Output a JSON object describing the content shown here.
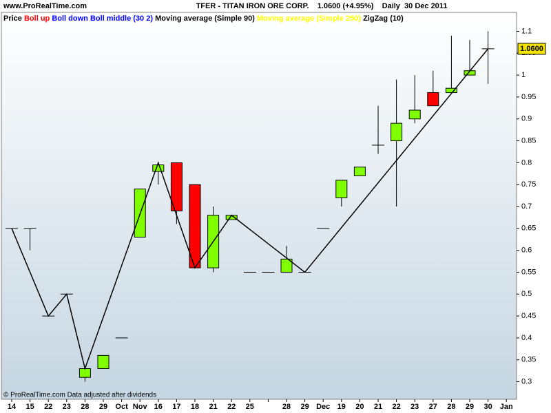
{
  "site": "www.ProRealTime.com",
  "footer": "© ProRealTime.com  Data adjusted after dividends",
  "chart_data": {
    "type": "candlestick",
    "title": "TFER - TITAN IRON ORE CORP.    1.0600 (+4.95%)    Daily  30 Dec 2011",
    "legend": [
      {
        "name": "Price",
        "color": "#000000"
      },
      {
        "name": "Boll up",
        "color": "#ff0000"
      },
      {
        "name": "Boll down",
        "color": "#0000ff"
      },
      {
        "name": "Boll middle (30 2)",
        "color": "#0000ff"
      },
      {
        "name": "Moving average (Simple 90)",
        "color": "#000000"
      },
      {
        "name": "Moving average (Simple 250)",
        "color": "#ffff00"
      },
      {
        "name": "ZigZag (10)",
        "color": "#000000"
      }
    ],
    "categories": [
      "14",
      "15",
      "22",
      "23",
      "28",
      "29",
      "Oct",
      "Nov",
      "16",
      "17",
      "18",
      "21",
      "22",
      "25",
      null,
      "28",
      "29",
      "Dec",
      "19",
      "20",
      "21",
      "22",
      "23",
      "27",
      "28",
      "29",
      "30",
      "Jan"
    ],
    "open": [
      0.65,
      0.65,
      0.45,
      0.5,
      0.31,
      0.33,
      0.4,
      0.63,
      0.78,
      0.8,
      0.75,
      0.56,
      0.67,
      0.55,
      0.55,
      0.55,
      0.55,
      0.65,
      0.72,
      0.77,
      0.84,
      0.85,
      0.9,
      0.96,
      0.96,
      1.0,
      1.06,
      null
    ],
    "high": [
      0.65,
      0.65,
      0.45,
      0.5,
      0.33,
      0.36,
      0.4,
      0.74,
      0.8,
      0.8,
      0.75,
      0.7,
      0.68,
      0.55,
      0.55,
      0.61,
      0.55,
      0.65,
      0.76,
      0.79,
      0.93,
      0.99,
      1.0,
      1.01,
      1.09,
      1.08,
      1.1,
      null
    ],
    "low": [
      0.65,
      0.6,
      0.45,
      0.5,
      0.3,
      0.33,
      0.4,
      0.63,
      0.75,
      0.66,
      0.56,
      0.55,
      0.67,
      0.55,
      0.55,
      0.55,
      0.55,
      0.65,
      0.7,
      0.77,
      0.82,
      0.7,
      0.89,
      0.93,
      0.96,
      1.0,
      0.98,
      null
    ],
    "close": [
      0.65,
      0.65,
      0.45,
      0.5,
      0.33,
      0.36,
      0.4,
      0.74,
      0.795,
      0.69,
      0.56,
      0.68,
      0.68,
      0.55,
      0.55,
      0.58,
      0.55,
      0.65,
      0.76,
      0.79,
      0.84,
      0.89,
      0.92,
      0.93,
      0.97,
      1.01,
      1.06,
      null
    ],
    "up_color": "#80ff00",
    "down_color": "#ff0000",
    "zigzag": {
      "name": "ZigZag (10)",
      "color": "#000000",
      "x": [
        0,
        2,
        3,
        4,
        8,
        10,
        12,
        16,
        26
      ],
      "values": [
        0.65,
        0.45,
        0.5,
        0.33,
        0.8,
        0.56,
        0.68,
        0.55,
        1.06
      ]
    },
    "last_price": {
      "value": 1.06,
      "label": "1.0600"
    },
    "ylim": [
      0.26,
      1.14
    ],
    "yticks": [
      0.3,
      0.35,
      0.4,
      0.45,
      0.5,
      0.55,
      0.6,
      0.65,
      0.7,
      0.75,
      0.8,
      0.85,
      0.9,
      0.95,
      1,
      1.05,
      1.1
    ]
  }
}
